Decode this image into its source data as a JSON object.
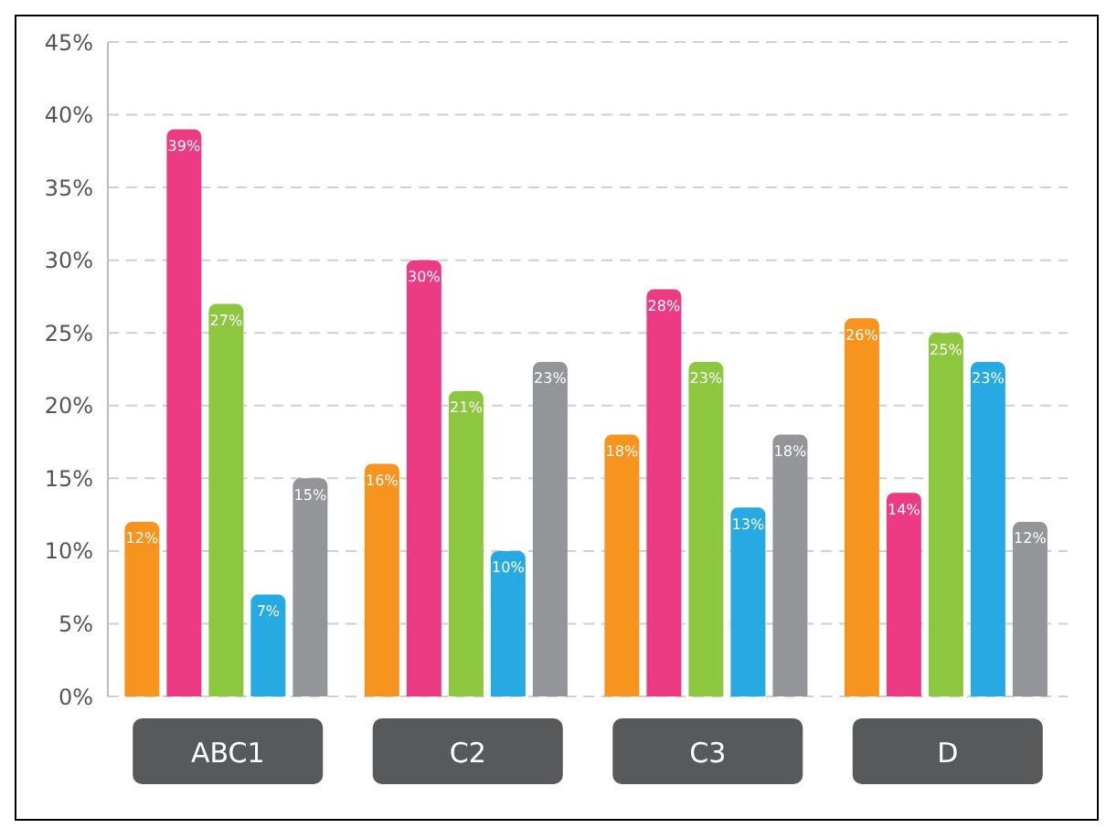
{
  "chart_data": {
    "type": "bar",
    "categories": [
      "ABC1",
      "C2",
      "C3",
      "D"
    ],
    "series": [
      {
        "color": "#f7941d",
        "values": [
          12,
          16,
          18,
          26
        ],
        "value_labels": [
          "12%",
          "16%",
          "18%",
          "26%"
        ]
      },
      {
        "color": "#ec3b83",
        "values": [
          39,
          30,
          28,
          14
        ],
        "value_labels": [
          "39%",
          "30%",
          "28%",
          "14%"
        ]
      },
      {
        "color": "#8dc63f",
        "values": [
          27,
          21,
          23,
          25
        ],
        "value_labels": [
          "27%",
          "21%",
          "23%",
          "25%"
        ]
      },
      {
        "color": "#27aae1",
        "values": [
          7,
          10,
          13,
          23
        ],
        "value_labels": [
          "7%",
          "10%",
          "13%",
          "23%"
        ]
      },
      {
        "color": "#939598",
        "values": [
          15,
          23,
          18,
          12
        ],
        "value_labels": [
          "15%",
          "23%",
          "18%",
          "12%"
        ]
      }
    ],
    "ylim": [
      0,
      45
    ],
    "yticks": [
      {
        "value": 0,
        "label": "0%"
      },
      {
        "value": 5,
        "label": "5%"
      },
      {
        "value": 10,
        "label": "10%"
      },
      {
        "value": 15,
        "label": "15%"
      },
      {
        "value": 20,
        "label": "20%"
      },
      {
        "value": 25,
        "label": "25%"
      },
      {
        "value": 30,
        "label": "30%"
      },
      {
        "value": 35,
        "label": "35%"
      },
      {
        "value": 40,
        "label": "40%"
      },
      {
        "value": 45,
        "label": "45%"
      }
    ],
    "grid": "y",
    "legend": false
  }
}
